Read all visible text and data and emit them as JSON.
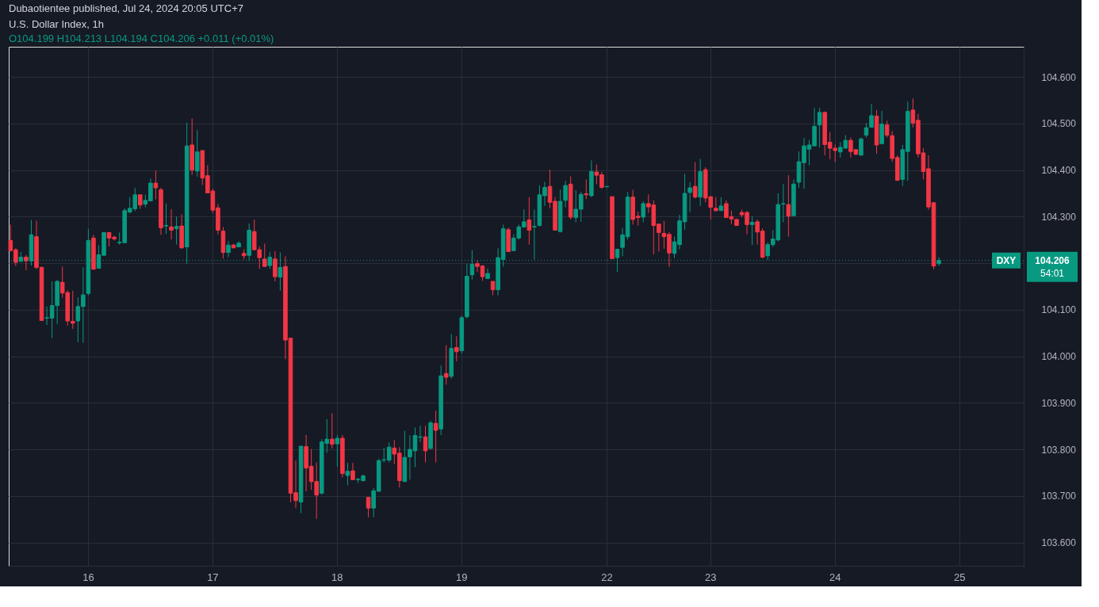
{
  "chart_data": {
    "type": "candlestick",
    "title": "U.S. Dollar Index, 1h",
    "subtitle": "O104.199 H104.213 L104.194 C104.206 +0.011 (+0.01%)",
    "annotations": [
      "Dubaotientee published, Jul 24, 2024 20:05 UTC+7",
      "104.206",
      "54:01"
    ],
    "categories": [
      null,
      null,
      null,
      null,
      null,
      null,
      null,
      null,
      null,
      null,
      null,
      null,
      null,
      null,
      null,
      "16",
      null,
      null,
      null,
      null,
      null,
      null,
      null,
      null,
      null,
      null,
      null,
      null,
      null,
      null,
      null,
      null,
      null,
      null,
      null,
      null,
      null,
      null,
      null,
      "17",
      null,
      null,
      null,
      null,
      null,
      null,
      null,
      null,
      null,
      null,
      null,
      null,
      null,
      null,
      null,
      null,
      null,
      null,
      null,
      null,
      null,
      null,
      null,
      "18",
      null,
      null,
      null,
      null,
      null,
      null,
      null,
      null,
      null,
      null,
      null,
      null,
      null,
      null,
      null,
      null,
      null,
      null,
      null,
      null,
      null,
      null,
      null,
      "19",
      null,
      null,
      null,
      null,
      null,
      null,
      null,
      null,
      null,
      null,
      null,
      null,
      null,
      null,
      null,
      null,
      null,
      null,
      null,
      null,
      null,
      null,
      null,
      null,
      null,
      null,
      null,
      "22",
      null,
      null,
      null,
      null,
      null,
      null,
      null,
      null,
      null,
      null,
      null,
      null,
      null,
      null,
      null,
      null,
      null,
      null,
      null,
      "23",
      null,
      null,
      null,
      null,
      null,
      null,
      null,
      null,
      null,
      null,
      null,
      null,
      null,
      null,
      null,
      null,
      null,
      null,
      null,
      null,
      null,
      null,
      null,
      "24",
      null,
      null,
      null,
      null,
      null,
      null,
      null,
      null,
      null,
      null,
      null,
      null,
      null,
      null,
      null,
      null,
      null,
      null,
      null,
      null,
      null,
      null,
      null,
      "25",
      null,
      null,
      null,
      null,
      null,
      null,
      null,
      null,
      null,
      null,
      null,
      null
    ],
    "ohlc": [
      [
        104.249,
        104.283,
        104.225,
        104.227
      ],
      [
        104.229,
        104.232,
        104.194,
        104.202
      ],
      [
        104.204,
        104.224,
        104.203,
        104.213
      ],
      [
        104.213,
        104.218,
        104.185,
        104.205
      ],
      [
        104.205,
        104.293,
        104.195,
        104.261
      ],
      [
        104.257,
        104.291,
        104.187,
        104.191
      ],
      [
        104.191,
        104.193,
        104.077,
        104.077
      ],
      [
        104.082,
        104.107,
        104.067,
        104.083
      ],
      [
        104.082,
        104.161,
        104.039,
        104.109
      ],
      [
        104.109,
        104.164,
        104.069,
        104.161
      ],
      [
        104.159,
        104.193,
        104.126,
        104.136
      ],
      [
        104.137,
        104.142,
        104.066,
        104.076
      ],
      [
        104.075,
        104.141,
        104.059,
        104.071
      ],
      [
        104.076,
        104.127,
        104.03,
        104.107
      ],
      [
        104.107,
        104.191,
        104.029,
        104.132
      ],
      [
        104.135,
        104.274,
        104.131,
        104.249
      ],
      [
        104.254,
        104.261,
        104.187,
        104.187
      ],
      [
        104.189,
        104.239,
        104.189,
        104.218
      ],
      [
        104.217,
        104.267,
        104.217,
        104.266
      ],
      [
        104.266,
        104.266,
        104.236,
        104.254
      ],
      [
        104.256,
        104.259,
        104.249,
        104.252
      ],
      [
        104.244,
        104.266,
        104.24,
        104.245
      ],
      [
        104.244,
        104.318,
        104.244,
        104.313
      ],
      [
        104.31,
        104.342,
        104.307,
        104.318
      ],
      [
        104.317,
        104.362,
        104.312,
        104.347
      ],
      [
        104.347,
        104.347,
        104.317,
        104.325
      ],
      [
        104.327,
        104.347,
        104.32,
        104.335
      ],
      [
        104.334,
        104.382,
        104.334,
        104.372
      ],
      [
        104.372,
        104.399,
        104.337,
        104.362
      ],
      [
        104.358,
        104.362,
        104.261,
        104.276
      ],
      [
        104.28,
        104.328,
        104.263,
        104.281
      ],
      [
        104.278,
        104.316,
        104.251,
        104.271
      ],
      [
        104.274,
        104.3,
        104.24,
        104.279
      ],
      [
        104.28,
        104.305,
        104.231,
        104.233
      ],
      [
        104.235,
        104.502,
        104.199,
        104.452
      ],
      [
        104.454,
        104.511,
        104.39,
        104.4
      ],
      [
        104.398,
        104.486,
        104.386,
        104.439
      ],
      [
        104.442,
        104.442,
        104.368,
        104.383
      ],
      [
        104.388,
        104.411,
        104.351,
        104.351
      ],
      [
        104.355,
        104.36,
        104.308,
        104.314
      ],
      [
        104.319,
        104.327,
        104.262,
        104.271
      ],
      [
        104.269,
        104.278,
        104.21,
        104.223
      ],
      [
        104.223,
        104.248,
        104.213,
        104.239
      ],
      [
        104.239,
        104.242,
        104.232,
        104.233
      ],
      [
        104.235,
        104.247,
        104.235,
        104.243
      ],
      [
        104.221,
        104.23,
        104.208,
        104.216
      ],
      [
        104.217,
        104.285,
        104.205,
        104.271
      ],
      [
        104.268,
        104.294,
        104.229,
        104.229
      ],
      [
        104.229,
        104.236,
        104.188,
        104.212
      ],
      [
        104.209,
        104.242,
        104.193,
        104.193
      ],
      [
        104.195,
        104.224,
        104.188,
        104.213
      ],
      [
        104.209,
        104.226,
        104.161,
        104.171
      ],
      [
        104.17,
        104.223,
        104.141,
        104.191
      ],
      [
        104.193,
        104.215,
        103.994,
        104.035
      ],
      [
        104.039,
        104.039,
        103.686,
        103.706
      ],
      [
        103.707,
        103.776,
        103.674,
        103.69
      ],
      [
        103.687,
        103.807,
        103.663,
        103.807
      ],
      [
        103.806,
        103.831,
        103.71,
        103.76
      ],
      [
        103.764,
        103.801,
        103.713,
        103.731
      ],
      [
        103.731,
        103.772,
        103.651,
        103.702
      ],
      [
        103.706,
        103.822,
        103.703,
        103.816
      ],
      [
        103.813,
        103.865,
        103.793,
        103.822
      ],
      [
        103.822,
        103.878,
        103.802,
        103.811
      ],
      [
        103.812,
        103.831,
        103.763,
        103.824
      ],
      [
        103.824,
        103.831,
        103.74,
        103.748
      ],
      [
        103.744,
        103.771,
        103.723,
        103.753
      ],
      [
        103.754,
        103.771,
        103.735,
        103.735
      ],
      [
        103.735,
        103.739,
        103.728,
        103.736
      ],
      [
        103.733,
        103.746,
        103.731,
        103.743
      ],
      [
        103.697,
        103.697,
        103.654,
        103.674
      ],
      [
        103.674,
        103.717,
        103.654,
        103.711
      ],
      [
        103.71,
        103.78,
        103.71,
        103.776
      ],
      [
        103.777,
        103.803,
        103.772,
        103.778
      ],
      [
        103.777,
        103.815,
        103.772,
        103.805
      ],
      [
        103.803,
        103.82,
        103.769,
        103.79
      ],
      [
        103.792,
        103.805,
        103.718,
        103.733
      ],
      [
        103.731,
        103.84,
        103.731,
        103.783
      ],
      [
        103.784,
        103.83,
        103.735,
        103.8
      ],
      [
        103.797,
        103.847,
        103.762,
        103.83
      ],
      [
        103.826,
        103.851,
        103.816,
        103.827
      ],
      [
        103.827,
        103.851,
        103.772,
        103.797
      ],
      [
        103.802,
        103.862,
        103.801,
        103.857
      ],
      [
        103.856,
        103.883,
        103.772,
        103.841
      ],
      [
        103.844,
        103.98,
        103.831,
        103.958
      ],
      [
        103.963,
        104.024,
        103.939,
        103.955
      ],
      [
        103.957,
        104.048,
        103.952,
        104.017
      ],
      [
        104.019,
        104.043,
        103.989,
        104.01
      ],
      [
        104.012,
        104.087,
        104.006,
        104.083
      ],
      [
        104.085,
        104.199,
        104.081,
        104.172
      ],
      [
        104.175,
        104.228,
        104.165,
        104.198
      ],
      [
        104.199,
        104.206,
        104.181,
        104.193
      ],
      [
        104.194,
        104.196,
        104.162,
        104.171
      ],
      [
        104.167,
        104.189,
        104.167,
        104.178
      ],
      [
        104.161,
        104.161,
        104.131,
        104.143
      ],
      [
        104.143,
        104.232,
        104.131,
        104.212
      ],
      [
        104.208,
        104.283,
        104.193,
        104.274
      ],
      [
        104.272,
        104.276,
        104.225,
        104.225
      ],
      [
        104.227,
        104.262,
        104.227,
        104.254
      ],
      [
        104.254,
        104.283,
        104.251,
        104.278
      ],
      [
        104.278,
        104.316,
        104.276,
        104.289
      ],
      [
        104.293,
        104.342,
        104.24,
        104.271
      ],
      [
        104.278,
        104.315,
        104.208,
        104.279
      ],
      [
        104.281,
        104.367,
        104.279,
        104.347
      ],
      [
        104.345,
        104.375,
        104.323,
        104.363
      ],
      [
        104.365,
        104.401,
        104.318,
        104.331
      ],
      [
        104.333,
        104.342,
        104.271,
        104.271
      ],
      [
        104.268,
        104.358,
        104.266,
        104.333
      ],
      [
        104.335,
        104.377,
        104.32,
        104.367
      ],
      [
        104.37,
        104.387,
        104.294,
        104.299
      ],
      [
        104.298,
        104.357,
        104.288,
        104.316
      ],
      [
        104.316,
        104.353,
        104.289,
        104.348
      ],
      [
        104.349,
        104.38,
        104.338,
        104.347
      ],
      [
        104.345,
        104.421,
        104.342,
        104.397
      ],
      [
        104.396,
        104.412,
        104.37,
        104.389
      ],
      [
        104.39,
        104.396,
        104.36,
        104.363
      ],
      [
        104.364,
        104.365,
        104.364,
        104.365
      ],
      [
        104.343,
        104.343,
        104.21,
        104.21
      ],
      [
        104.212,
        104.23,
        104.181,
        104.23
      ],
      [
        104.234,
        104.276,
        104.215,
        104.261
      ],
      [
        104.257,
        104.353,
        104.251,
        104.342
      ],
      [
        104.342,
        104.358,
        104.283,
        104.294
      ],
      [
        104.301,
        104.311,
        104.281,
        104.298
      ],
      [
        104.299,
        104.333,
        104.288,
        104.328
      ],
      [
        104.328,
        104.348,
        104.308,
        104.321
      ],
      [
        104.325,
        104.335,
        104.219,
        104.281
      ],
      [
        104.284,
        104.284,
        104.225,
        104.266
      ],
      [
        104.264,
        104.291,
        104.231,
        104.257
      ],
      [
        104.262,
        104.267,
        104.192,
        104.222
      ],
      [
        104.221,
        104.257,
        104.211,
        104.246
      ],
      [
        104.24,
        104.304,
        104.23,
        104.291
      ],
      [
        104.289,
        104.392,
        104.272,
        104.35
      ],
      [
        104.352,
        104.374,
        104.31,
        104.362
      ],
      [
        104.365,
        104.417,
        104.339,
        104.342
      ],
      [
        104.342,
        104.424,
        104.323,
        104.397
      ],
      [
        104.401,
        104.406,
        104.331,
        104.34
      ],
      [
        104.343,
        104.343,
        104.294,
        104.32
      ],
      [
        104.318,
        104.342,
        104.311,
        104.313
      ],
      [
        104.313,
        104.342,
        104.313,
        104.323
      ],
      [
        104.328,
        104.335,
        104.298,
        104.298
      ],
      [
        104.3,
        104.313,
        104.284,
        104.295
      ],
      [
        104.294,
        104.296,
        104.281,
        104.281
      ],
      [
        104.309,
        104.315,
        104.299,
        104.304
      ],
      [
        104.309,
        104.312,
        104.262,
        104.283
      ],
      [
        104.283,
        104.301,
        104.239,
        104.288
      ],
      [
        104.289,
        104.294,
        104.24,
        104.267
      ],
      [
        104.269,
        104.275,
        104.21,
        104.213
      ],
      [
        104.216,
        104.245,
        104.207,
        104.24
      ],
      [
        104.24,
        104.271,
        104.235,
        104.252
      ],
      [
        104.25,
        104.35,
        104.247,
        104.326
      ],
      [
        104.327,
        104.37,
        104.288,
        104.328
      ],
      [
        104.326,
        104.389,
        104.257,
        104.301
      ],
      [
        104.302,
        104.38,
        104.302,
        104.37
      ],
      [
        104.374,
        104.44,
        104.362,
        104.418
      ],
      [
        104.416,
        104.469,
        104.36,
        104.452
      ],
      [
        104.445,
        104.465,
        104.41,
        104.454
      ],
      [
        104.452,
        104.534,
        104.452,
        104.494
      ],
      [
        104.497,
        104.534,
        104.449,
        104.524
      ],
      [
        104.524,
        104.526,
        104.432,
        104.455
      ],
      [
        104.46,
        104.482,
        104.423,
        104.447
      ],
      [
        104.447,
        104.455,
        104.417,
        104.442
      ],
      [
        104.439,
        104.46,
        104.427,
        104.449
      ],
      [
        104.447,
        104.475,
        104.447,
        104.464
      ],
      [
        104.464,
        104.47,
        104.427,
        104.44
      ],
      [
        104.444,
        104.444,
        104.432,
        104.434
      ],
      [
        104.432,
        104.47,
        104.432,
        104.467
      ],
      [
        104.475,
        104.501,
        104.47,
        104.491
      ],
      [
        104.492,
        104.542,
        104.491,
        104.517
      ],
      [
        104.516,
        104.529,
        104.435,
        104.454
      ],
      [
        104.457,
        104.527,
        104.455,
        104.499
      ],
      [
        104.497,
        104.506,
        104.47,
        104.475
      ],
      [
        104.474,
        104.484,
        104.418,
        104.425
      ],
      [
        104.427,
        104.432,
        104.377,
        104.378
      ],
      [
        104.38,
        104.454,
        104.366,
        104.444
      ],
      [
        104.44,
        104.547,
        104.377,
        104.526
      ],
      [
        104.529,
        104.554,
        104.492,
        104.501
      ],
      [
        104.507,
        104.521,
        104.427,
        104.435
      ],
      [
        104.437,
        104.447,
        104.38,
        104.397
      ],
      [
        104.403,
        104.432,
        104.315,
        104.321
      ],
      [
        104.33,
        104.33,
        104.187,
        104.194
      ],
      [
        104.199,
        104.213,
        104.194,
        104.206
      ],
      null,
      null,
      null,
      null,
      null,
      null,
      null,
      null,
      null,
      null,
      null,
      null,
      null,
      null,
      null,
      null
    ],
    "colors": [
      "#f23645",
      "#f23645",
      "#089981",
      "#f23645",
      "#089981",
      "#f23645",
      "#f23645",
      "#089981",
      "#089981",
      "#089981",
      "#f23645",
      "#f23645",
      "#f23645",
      "#089981",
      "#089981",
      "#089981",
      "#f23645",
      "#089981",
      "#089981",
      "#f23645",
      "#f23645",
      "#089981",
      "#089981",
      "#089981",
      "#089981",
      "#f23645",
      "#089981",
      "#089981",
      "#f23645",
      "#f23645",
      "#089981",
      "#f23645",
      "#089981",
      "#f23645",
      "#089981",
      "#f23645",
      "#089981",
      "#f23645",
      "#f23645",
      "#f23645",
      "#f23645",
      "#f23645",
      "#089981",
      "#f23645",
      "#089981",
      "#f23645",
      "#089981",
      "#f23645",
      "#f23645",
      "#f23645",
      "#089981",
      "#f23645",
      "#089981",
      "#f23645",
      "#f23645",
      "#f23645",
      "#089981",
      "#f23645",
      "#f23645",
      "#f23645",
      "#089981",
      "#089981",
      "#f23645",
      "#089981",
      "#f23645",
      "#089981",
      "#f23645",
      "#089981",
      "#089981",
      "#f23645",
      "#089981",
      "#089981",
      "#089981",
      "#089981",
      "#f23645",
      "#f23645",
      "#089981",
      "#089981",
      "#089981",
      "#089981",
      "#f23645",
      "#089981",
      "#f23645",
      "#089981",
      "#f23645",
      "#089981",
      "#f23645",
      "#089981",
      "#089981",
      "#089981",
      "#f23645",
      "#f23645",
      "#089981",
      "#f23645",
      "#089981",
      "#089981",
      "#f23645",
      "#089981",
      "#089981",
      "#089981",
      "#f23645",
      "#089981",
      "#089981",
      "#089981",
      "#f23645",
      "#f23645",
      "#089981",
      "#089981",
      "#f23645",
      "#089981",
      "#089981",
      "#f23645",
      "#089981",
      "#f23645",
      "#f23645",
      "#089981",
      "#f23645",
      "#089981",
      "#089981",
      "#089981",
      "#f23645",
      "#f23645",
      "#089981",
      "#f23645",
      "#f23645",
      "#f23645",
      "#f23645",
      "#f23645",
      "#089981",
      "#089981",
      "#089981",
      "#089981",
      "#f23645",
      "#089981",
      "#f23645",
      "#f23645",
      "#f23645",
      "#089981",
      "#f23645",
      "#f23645",
      "#f23645",
      "#f23645",
      "#f23645",
      "#089981",
      "#f23645",
      "#f23645",
      "#089981",
      "#089981",
      "#089981",
      "#089981",
      "#f23645",
      "#089981",
      "#089981",
      "#089981",
      "#089981",
      "#089981",
      "#089981",
      "#f23645",
      "#f23645",
      "#f23645",
      "#089981",
      "#089981",
      "#f23645",
      "#f23645",
      "#089981",
      "#089981",
      "#089981",
      "#f23645",
      "#089981",
      "#f23645",
      "#f23645",
      "#f23645",
      "#089981",
      "#089981",
      "#f23645",
      "#f23645",
      "#f23645",
      "#f23645",
      "#f23645",
      "#089981",
      null,
      null,
      null,
      null,
      null,
      null,
      null,
      null,
      null,
      null,
      null,
      null,
      null,
      null,
      null,
      null
    ],
    "ylim": [
      103.55,
      104.665
    ],
    "yticks": [
      {
        "value": 103.6,
        "label": "103.600"
      },
      {
        "value": 103.7,
        "label": "103.700"
      },
      {
        "value": 103.8,
        "label": "103.800"
      },
      {
        "value": 103.9,
        "label": "103.900"
      },
      {
        "value": 104.0,
        "label": "104.000"
      },
      {
        "value": 104.1,
        "label": "104.100"
      },
      {
        "value": 104.2,
        "label": null
      },
      {
        "value": 104.3,
        "label": "104.300"
      },
      {
        "value": 104.4,
        "label": "104.400"
      },
      {
        "value": 104.5,
        "label": "104.500"
      },
      {
        "value": 104.6,
        "label": "104.600"
      }
    ],
    "grid": true,
    "ref_lines": [
      {
        "axis": "y",
        "value": 104.206,
        "label": "DXY",
        "color": "#089981",
        "line_style": "dotted"
      }
    ]
  }
}
